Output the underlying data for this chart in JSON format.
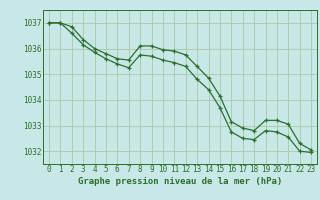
{
  "background_color": "#c8e8e8",
  "grid_color": "#a8c8a8",
  "line_color": "#2d6e2d",
  "title": "Graphe pression niveau de la mer (hPa)",
  "xlim": [
    -0.5,
    23.5
  ],
  "ylim": [
    1031.5,
    1037.5
  ],
  "yticks": [
    1032,
    1033,
    1034,
    1035,
    1036,
    1037
  ],
  "xticks": [
    0,
    1,
    2,
    3,
    4,
    5,
    6,
    7,
    8,
    9,
    10,
    11,
    12,
    13,
    14,
    15,
    16,
    17,
    18,
    19,
    20,
    21,
    22,
    23
  ],
  "series1_x": [
    0,
    1,
    2,
    3,
    4,
    5,
    6,
    7,
    8,
    9,
    10,
    11,
    12,
    13,
    14,
    15,
    16,
    17,
    18,
    19,
    20,
    21,
    22,
    23
  ],
  "series1_y": [
    1037.0,
    1037.0,
    1036.85,
    1036.35,
    1036.0,
    1035.8,
    1035.6,
    1035.55,
    1036.1,
    1036.1,
    1035.95,
    1035.9,
    1035.75,
    1035.3,
    1034.85,
    1034.15,
    1033.15,
    1032.9,
    1032.8,
    1033.2,
    1033.2,
    1033.05,
    1032.3,
    1032.05
  ],
  "series2_x": [
    0,
    1,
    2,
    3,
    4,
    5,
    6,
    7,
    8,
    9,
    10,
    11,
    12,
    13,
    14,
    15,
    16,
    17,
    18,
    19,
    20,
    21,
    22,
    23
  ],
  "series2_y": [
    1037.0,
    1037.0,
    1036.6,
    1036.15,
    1035.85,
    1035.6,
    1035.4,
    1035.25,
    1035.75,
    1035.7,
    1035.55,
    1035.45,
    1035.3,
    1034.8,
    1034.4,
    1033.7,
    1032.75,
    1032.5,
    1032.45,
    1032.8,
    1032.75,
    1032.55,
    1032.0,
    1031.95
  ],
  "title_fontsize": 6.5,
  "tick_fontsize": 5.5
}
